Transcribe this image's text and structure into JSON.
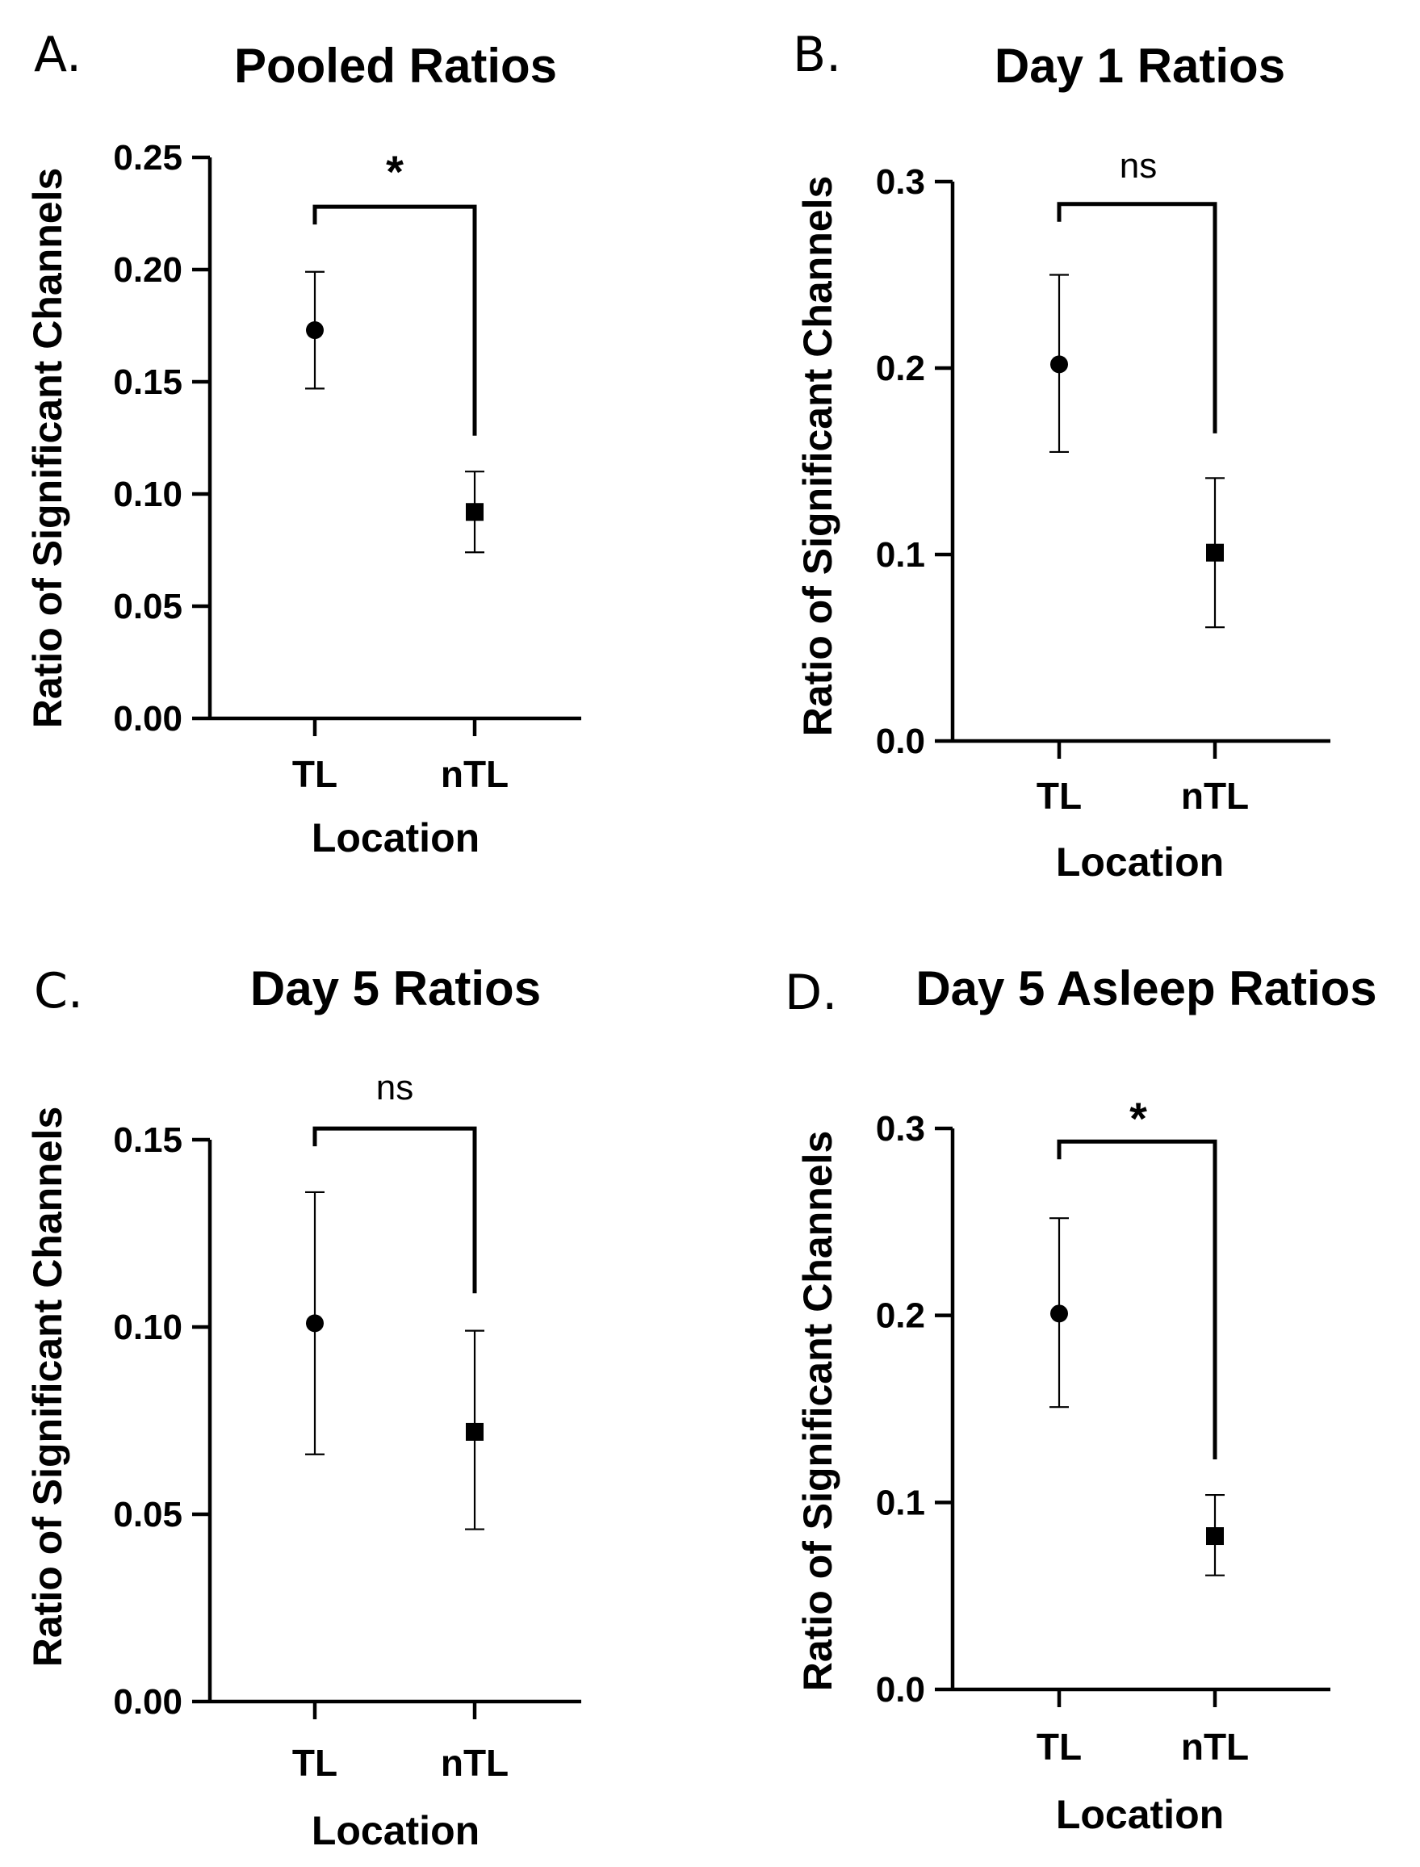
{
  "chart_data": [
    {
      "panel": "A.",
      "type": "scatter",
      "title": "Pooled Ratios",
      "xlabel": "Location",
      "ylabel": "Ratio of Significant Channels",
      "categories": [
        "TL",
        "nTL"
      ],
      "ylim": [
        0,
        0.25
      ],
      "yticks": [
        "0.00",
        "0.05",
        "0.10",
        "0.15",
        "0.20",
        "0.25"
      ],
      "series": [
        {
          "name": "TL",
          "marker": "circle",
          "mean": 0.173,
          "err_low": 0.147,
          "err_high": 0.199
        },
        {
          "name": "nTL",
          "marker": "square",
          "mean": 0.092,
          "err_low": 0.074,
          "err_high": 0.11
        }
      ],
      "significance": "*",
      "bracket_y": 0.228,
      "bracket_right_end": 0.126
    },
    {
      "panel": "B.",
      "type": "scatter",
      "title": "Day 1 Ratios",
      "xlabel": "Location",
      "ylabel": "Ratio of Significant Channels",
      "categories": [
        "TL",
        "nTL"
      ],
      "ylim": [
        0,
        0.3
      ],
      "yticks": [
        "0.0",
        "0.1",
        "0.2",
        "0.3"
      ],
      "series": [
        {
          "name": "TL",
          "marker": "circle",
          "mean": 0.202,
          "err_low": 0.155,
          "err_high": 0.25
        },
        {
          "name": "nTL",
          "marker": "square",
          "mean": 0.101,
          "err_low": 0.061,
          "err_high": 0.141
        }
      ],
      "significance": "ns",
      "bracket_y": 0.288,
      "bracket_right_end": 0.165
    },
    {
      "panel": "C.",
      "type": "scatter",
      "title": "Day 5 Ratios",
      "xlabel": "Location",
      "ylabel": "Ratio of Significant Channels",
      "categories": [
        "TL",
        "nTL"
      ],
      "ylim": [
        0,
        0.15
      ],
      "yticks": [
        "0.00",
        "0.05",
        "0.10",
        "0.15"
      ],
      "series": [
        {
          "name": "TL",
          "marker": "circle",
          "mean": 0.101,
          "err_low": 0.066,
          "err_high": 0.136
        },
        {
          "name": "nTL",
          "marker": "square",
          "mean": 0.072,
          "err_low": 0.046,
          "err_high": 0.099
        }
      ],
      "significance": "ns",
      "bracket_y": 0.153,
      "bracket_right_end": 0.109
    },
    {
      "panel": "D.",
      "type": "scatter",
      "title": "Day 5 Asleep Ratios",
      "xlabel": "Location",
      "ylabel": "Ratio of Significant Channels",
      "categories": [
        "TL",
        "nTL"
      ],
      "ylim": [
        0,
        0.3
      ],
      "yticks": [
        "0.0",
        "0.1",
        "0.2",
        "0.3"
      ],
      "series": [
        {
          "name": "TL",
          "marker": "circle",
          "mean": 0.201,
          "err_low": 0.151,
          "err_high": 0.252
        },
        {
          "name": "nTL",
          "marker": "square",
          "mean": 0.082,
          "err_low": 0.061,
          "err_high": 0.104
        }
      ],
      "significance": "*",
      "bracket_y": 0.293,
      "bracket_right_end": 0.123
    }
  ]
}
